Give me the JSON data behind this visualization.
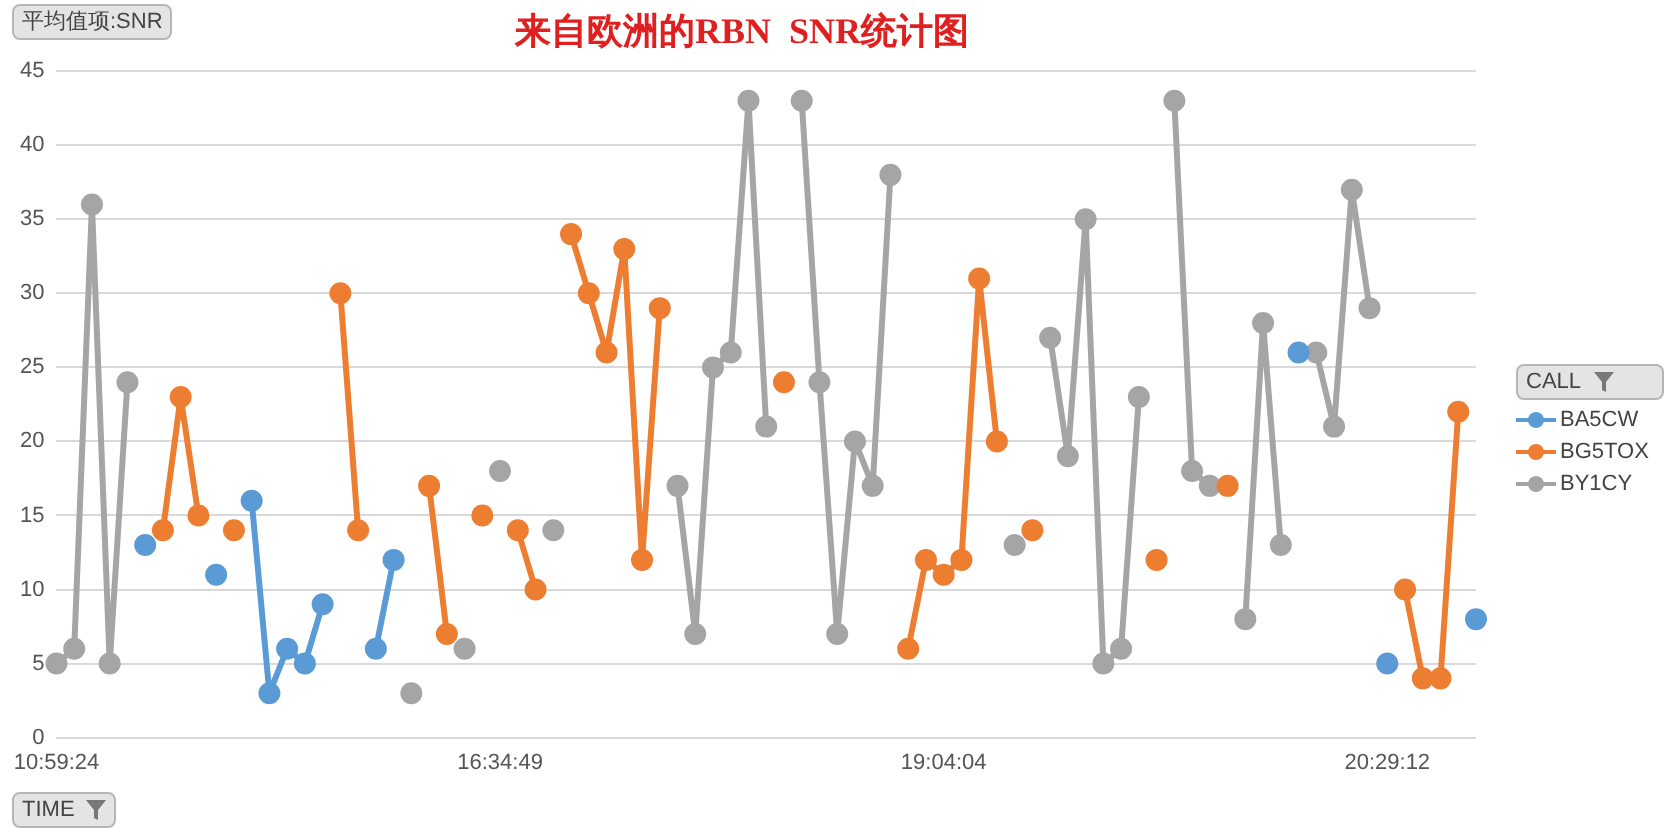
{
  "chart_data": {
    "type": "line",
    "title": "来自欧洲的RBN  SNR统计图",
    "ylabel": "平均值项:SNR",
    "xlabel": "TIME",
    "legend_title": "CALL",
    "categories": [
      "10:59:24",
      null,
      null,
      null,
      null,
      null,
      null,
      null,
      null,
      null,
      null,
      null,
      null,
      null,
      null,
      null,
      null,
      null,
      null,
      null,
      null,
      null,
      null,
      null,
      null,
      "16:34:49",
      null,
      null,
      null,
      null,
      null,
      null,
      null,
      null,
      null,
      null,
      null,
      null,
      null,
      null,
      null,
      null,
      null,
      null,
      null,
      null,
      null,
      null,
      null,
      null,
      "19:04:04",
      null,
      null,
      null,
      null,
      null,
      null,
      null,
      null,
      null,
      null,
      null,
      null,
      null,
      null,
      null,
      null,
      null,
      null,
      null,
      null,
      null,
      null,
      null,
      null,
      "20:29:12",
      null,
      null,
      null,
      null,
      null
    ],
    "series": [
      {
        "name": "BA5CW",
        "color": "#5b9bd5",
        "values": [
          null,
          null,
          null,
          null,
          null,
          13,
          null,
          null,
          null,
          11,
          null,
          16,
          3,
          6,
          5,
          9,
          null,
          null,
          6,
          12,
          null,
          null,
          null,
          null,
          null,
          null,
          null,
          null,
          null,
          null,
          null,
          null,
          null,
          null,
          null,
          null,
          null,
          null,
          null,
          null,
          null,
          null,
          null,
          null,
          null,
          null,
          null,
          null,
          null,
          null,
          null,
          null,
          null,
          null,
          null,
          null,
          null,
          null,
          null,
          null,
          null,
          null,
          null,
          null,
          null,
          null,
          null,
          null,
          null,
          null,
          26,
          null,
          null,
          null,
          null,
          5,
          null,
          null,
          null,
          null,
          8
        ]
      },
      {
        "name": "BG5TOX",
        "color": "#ed7d31",
        "values": [
          null,
          null,
          null,
          null,
          null,
          null,
          14,
          23,
          15,
          null,
          14,
          null,
          null,
          null,
          null,
          null,
          30,
          14,
          null,
          null,
          null,
          17,
          7,
          null,
          15,
          null,
          14,
          10,
          null,
          34,
          30,
          26,
          33,
          12,
          29,
          null,
          null,
          null,
          null,
          null,
          null,
          24,
          null,
          null,
          null,
          null,
          null,
          null,
          6,
          12,
          11,
          12,
          31,
          20,
          null,
          14,
          null,
          null,
          null,
          null,
          null,
          null,
          12,
          null,
          null,
          null,
          17,
          null,
          null,
          null,
          null,
          null,
          null,
          null,
          null,
          null,
          10,
          4,
          4,
          22,
          null
        ]
      },
      {
        "name": "BY1CY",
        "color": "#a5a5a5",
        "values": [
          5,
          6,
          36,
          5,
          24,
          null,
          null,
          null,
          null,
          null,
          null,
          null,
          null,
          null,
          null,
          null,
          null,
          null,
          null,
          null,
          3,
          null,
          null,
          6,
          null,
          18,
          null,
          null,
          14,
          null,
          null,
          null,
          null,
          null,
          null,
          17,
          7,
          25,
          26,
          43,
          21,
          null,
          43,
          24,
          7,
          20,
          17,
          38,
          null,
          null,
          null,
          null,
          null,
          null,
          13,
          null,
          27,
          19,
          35,
          5,
          6,
          23,
          null,
          43,
          18,
          17,
          null,
          8,
          28,
          13,
          null,
          26,
          21,
          37,
          29,
          null,
          null,
          null,
          null,
          null,
          null
        ]
      }
    ],
    "ylim": [
      0,
      45
    ],
    "yticks": [
      0,
      5,
      10,
      15,
      20,
      25,
      30,
      35,
      40,
      45
    ],
    "grid": "y",
    "legend": "right",
    "marker": "circle",
    "line_style": "solid"
  }
}
